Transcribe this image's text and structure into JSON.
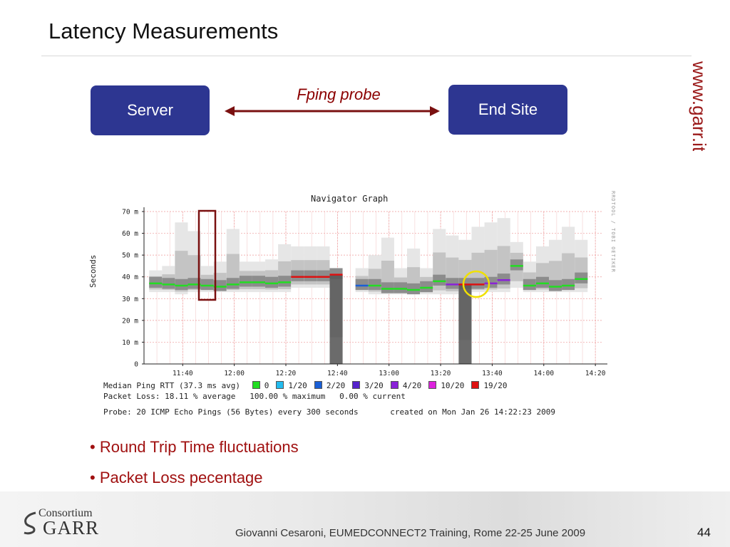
{
  "slide": {
    "title": "Latency Measurements",
    "brand": "www.garr.it",
    "page_number": "44",
    "footer": "Giovanni Cesaroni, EUMEDCONNECT2 Training, Rome 22-25 June 2009",
    "logo_small": "Consortium",
    "logo_big": "GARR"
  },
  "diagram": {
    "left_box": "Server",
    "right_box": "End Site",
    "link_label": "Fping probe"
  },
  "bullets": [
    "• Round Trip Time fluctuations",
    "• Packet Loss pecentage"
  ],
  "colors": {
    "box": "#2d3691",
    "accent": "#8b0000",
    "median_line": "#22dd22",
    "highlight_box": "#7a1010",
    "highlight_circle": "#f0e000"
  },
  "chart_data": {
    "type": "area",
    "title": "Navigator Graph",
    "ylabel": "Seconds",
    "side_note": "RRDTOOL / TOBI OETIKER",
    "ylim": [
      0,
      0.07
    ],
    "yticks": [
      "0",
      "10 m",
      "20 m",
      "30 m",
      "40 m",
      "50 m",
      "60 m",
      "70 m"
    ],
    "xticks": [
      "11:40",
      "12:00",
      "12:20",
      "12:40",
      "13:00",
      "13:20",
      "13:40",
      "14:00",
      "14:20"
    ],
    "x_range": [
      "11:25",
      "14:23"
    ],
    "grid": true,
    "series": [
      {
        "name": "Median Ping RTT",
        "step_minutes": 5,
        "samples": [
          {
            "t": "11:27",
            "median": 37.0,
            "min": 33,
            "max": 43,
            "loss": 0
          },
          {
            "t": "11:32",
            "median": 36.5,
            "min": 33,
            "max": 45,
            "loss": 0
          },
          {
            "t": "11:37",
            "median": 36.0,
            "min": 32,
            "max": 65,
            "loss": 0
          },
          {
            "t": "11:42",
            "median": 36.5,
            "min": 33,
            "max": 61,
            "loss": 0
          },
          {
            "t": "11:47",
            "median": 36.0,
            "min": 33,
            "max": 45,
            "loss": 0
          },
          {
            "t": "11:52",
            "median": 35.5,
            "min": 33,
            "max": 47,
            "loss": 0
          },
          {
            "t": "11:57",
            "median": 36.5,
            "min": 33,
            "max": 62,
            "loss": 0
          },
          {
            "t": "12:02",
            "median": 37.5,
            "min": 33,
            "max": 47,
            "loss": 0
          },
          {
            "t": "12:07",
            "median": 37.5,
            "min": 33,
            "max": 47,
            "loss": 0
          },
          {
            "t": "12:12",
            "median": 37.0,
            "min": 33,
            "max": 48,
            "loss": 0
          },
          {
            "t": "12:17",
            "median": 37.5,
            "min": 33,
            "max": 55,
            "loss": 0
          },
          {
            "t": "12:22",
            "median": 40.0,
            "min": 35,
            "max": 54,
            "loss": 19
          },
          {
            "t": "12:27",
            "median": 40.0,
            "min": 35,
            "max": 54,
            "loss": 19
          },
          {
            "t": "12:32",
            "median": 40.0,
            "min": 35,
            "max": 54,
            "loss": 19
          },
          {
            "t": "12:37",
            "median": 41.0,
            "min": 0,
            "max": 41,
            "loss": 19
          },
          {
            "t": "12:47",
            "median": 36.0,
            "min": 33,
            "max": 44,
            "loss": 2
          },
          {
            "t": "12:52",
            "median": 36.0,
            "min": 32,
            "max": 50,
            "loss": 0
          },
          {
            "t": "12:57",
            "median": 34.5,
            "min": 32,
            "max": 58,
            "loss": 0
          },
          {
            "t": "13:02",
            "median": 34.5,
            "min": 32,
            "max": 44,
            "loss": 0
          },
          {
            "t": "13:07",
            "median": 34.0,
            "min": 32,
            "max": 53,
            "loss": 0
          },
          {
            "t": "13:12",
            "median": 35.0,
            "min": 32,
            "max": 44,
            "loss": 0
          },
          {
            "t": "13:17",
            "median": 38.0,
            "min": 32,
            "max": 62,
            "loss": 0
          },
          {
            "t": "13:22",
            "median": 36.5,
            "min": 32,
            "max": 59,
            "loss": 4
          },
          {
            "t": "13:27",
            "median": 36.5,
            "min": 0,
            "max": 57,
            "loss": 19
          },
          {
            "t": "13:32",
            "median": 36.5,
            "min": 33,
            "max": 63,
            "loss": 19
          },
          {
            "t": "13:37",
            "median": 37.0,
            "min": 33,
            "max": 65,
            "loss": 4
          },
          {
            "t": "13:42",
            "median": 38.5,
            "min": 33,
            "max": 67,
            "loss": 4
          },
          {
            "t": "13:47",
            "median": 45.0,
            "min": 35,
            "max": 56,
            "loss": 0
          },
          {
            "t": "13:52",
            "median": 36.0,
            "min": 33,
            "max": 47,
            "loss": 0
          },
          {
            "t": "13:57",
            "median": 37.0,
            "min": 33,
            "max": 54,
            "loss": 0
          },
          {
            "t": "14:02",
            "median": 35.5,
            "min": 33,
            "max": 57,
            "loss": 0
          },
          {
            "t": "14:07",
            "median": 36.0,
            "min": 33,
            "max": 63,
            "loss": 0
          },
          {
            "t": "14:12",
            "median": 39.0,
            "min": 33,
            "max": 57,
            "loss": 0
          }
        ]
      }
    ],
    "legend": {
      "line1_prefix": "Median Ping RTT (37.3 ms avg)",
      "loss_entries": [
        {
          "label": "0",
          "color": "#22dd22"
        },
        {
          "label": "1/20",
          "color": "#22bbee"
        },
        {
          "label": "2/20",
          "color": "#1a5fd6"
        },
        {
          "label": "3/20",
          "color": "#5522cc"
        },
        {
          "label": "4/20",
          "color": "#8a22d8"
        },
        {
          "label": "10/20",
          "color": "#dd22dd"
        },
        {
          "label": "19/20",
          "color": "#dd1111"
        }
      ],
      "packet_loss": "Packet Loss: 18.11 % average   100.00 % maximum   0.00 % current",
      "probe": "Probe: 20 ICMP Echo Pings (56 Bytes) every 300 seconds",
      "created": "created on Mon Jan 26 14:22:23 2009"
    }
  }
}
